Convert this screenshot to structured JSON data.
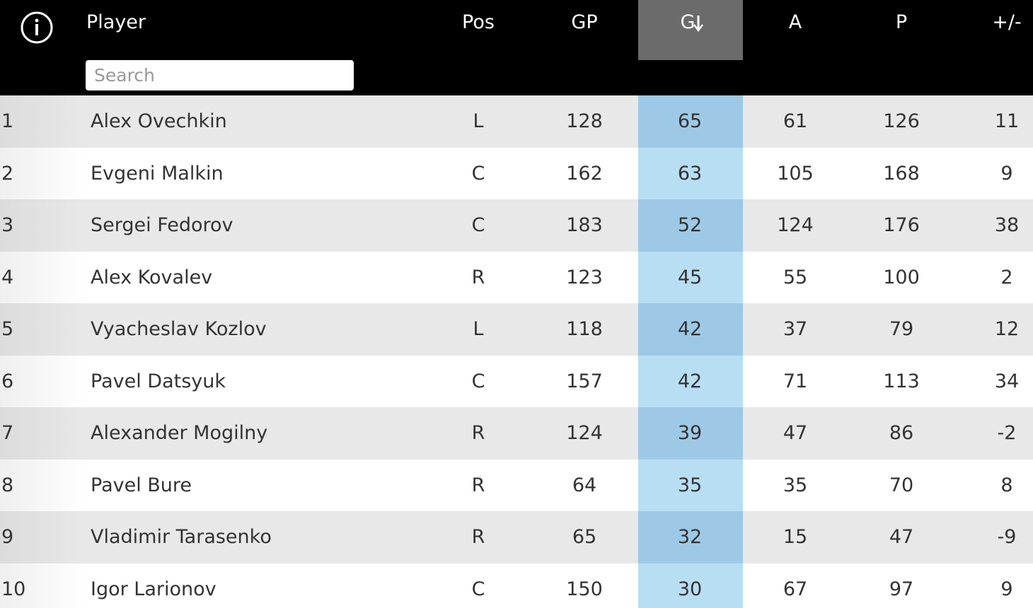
{
  "table": {
    "columns": [
      "Player",
      "Pos",
      "GP",
      "G",
      "A",
      "P",
      "+/-"
    ],
    "search_placeholder": "Search",
    "rows": [
      [
        1,
        "Alex Ovechkin",
        "L",
        128,
        65,
        61,
        126,
        11
      ],
      [
        2,
        "Evgeni Malkin",
        "C",
        162,
        63,
        105,
        168,
        9
      ],
      [
        3,
        "Sergei Fedorov",
        "C",
        183,
        52,
        124,
        176,
        38
      ],
      [
        4,
        "Alex Kovalev",
        "R",
        123,
        45,
        55,
        100,
        2
      ],
      [
        5,
        "Vyacheslav Kozlov",
        "L",
        118,
        42,
        37,
        79,
        12
      ],
      [
        6,
        "Pavel Datsyuk",
        "C",
        157,
        42,
        71,
        113,
        34
      ],
      [
        7,
        "Alexander Mogilny",
        "R",
        124,
        39,
        47,
        86,
        -2
      ],
      [
        8,
        "Pavel Bure",
        "R",
        64,
        35,
        35,
        70,
        8
      ],
      [
        9,
        "Vladimir Tarasenko",
        "R",
        65,
        32,
        15,
        47,
        -9
      ],
      [
        10,
        "Igor Larionov",
        "C",
        150,
        30,
        67,
        97,
        9
      ]
    ]
  }
}
